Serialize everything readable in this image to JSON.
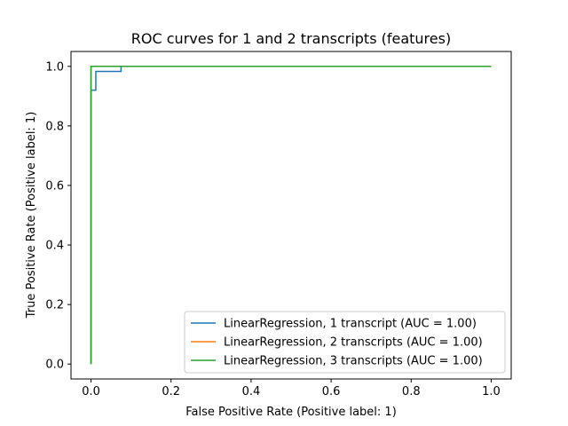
{
  "chart_data": {
    "type": "line",
    "title": "ROC curves for 1 and 2 transcripts (features)",
    "xlabel": "False Positive Rate (Positive label: 1)",
    "ylabel": "True Positive Rate (Positive label: 1)",
    "xlim": [
      -0.05,
      1.05
    ],
    "ylim": [
      -0.05,
      1.05
    ],
    "xticks": [
      0.0,
      0.2,
      0.4,
      0.6,
      0.8,
      1.0
    ],
    "yticks": [
      0.0,
      0.2,
      0.4,
      0.6,
      0.8,
      1.0
    ],
    "xtick_labels": [
      "0.0",
      "0.2",
      "0.4",
      "0.6",
      "0.8",
      "1.0"
    ],
    "ytick_labels": [
      "0.0",
      "0.2",
      "0.4",
      "0.6",
      "0.8",
      "1.0"
    ],
    "grid": false,
    "legend_position": "bottom-right",
    "series": [
      {
        "name": "LinearRegression, 1 transcript (AUC = 1.00)",
        "color": "#1f77b4",
        "x": [
          0.0,
          0.0,
          0.0,
          0.012,
          0.012,
          0.075,
          0.075,
          1.0
        ],
        "y": [
          0.0,
          0.92,
          0.92,
          0.92,
          0.983,
          0.983,
          1.0,
          1.0
        ]
      },
      {
        "name": "LinearRegression, 2 transcripts (AUC = 1.00)",
        "color": "#ff7f0e",
        "x": [
          0.0,
          0.0,
          1.0
        ],
        "y": [
          0.0,
          1.0,
          1.0
        ]
      },
      {
        "name": "LinearRegression, 3 transcripts (AUC = 1.00)",
        "color": "#2ca02c",
        "x": [
          0.0,
          0.0,
          1.0
        ],
        "y": [
          0.0,
          1.0,
          1.0
        ]
      }
    ]
  }
}
